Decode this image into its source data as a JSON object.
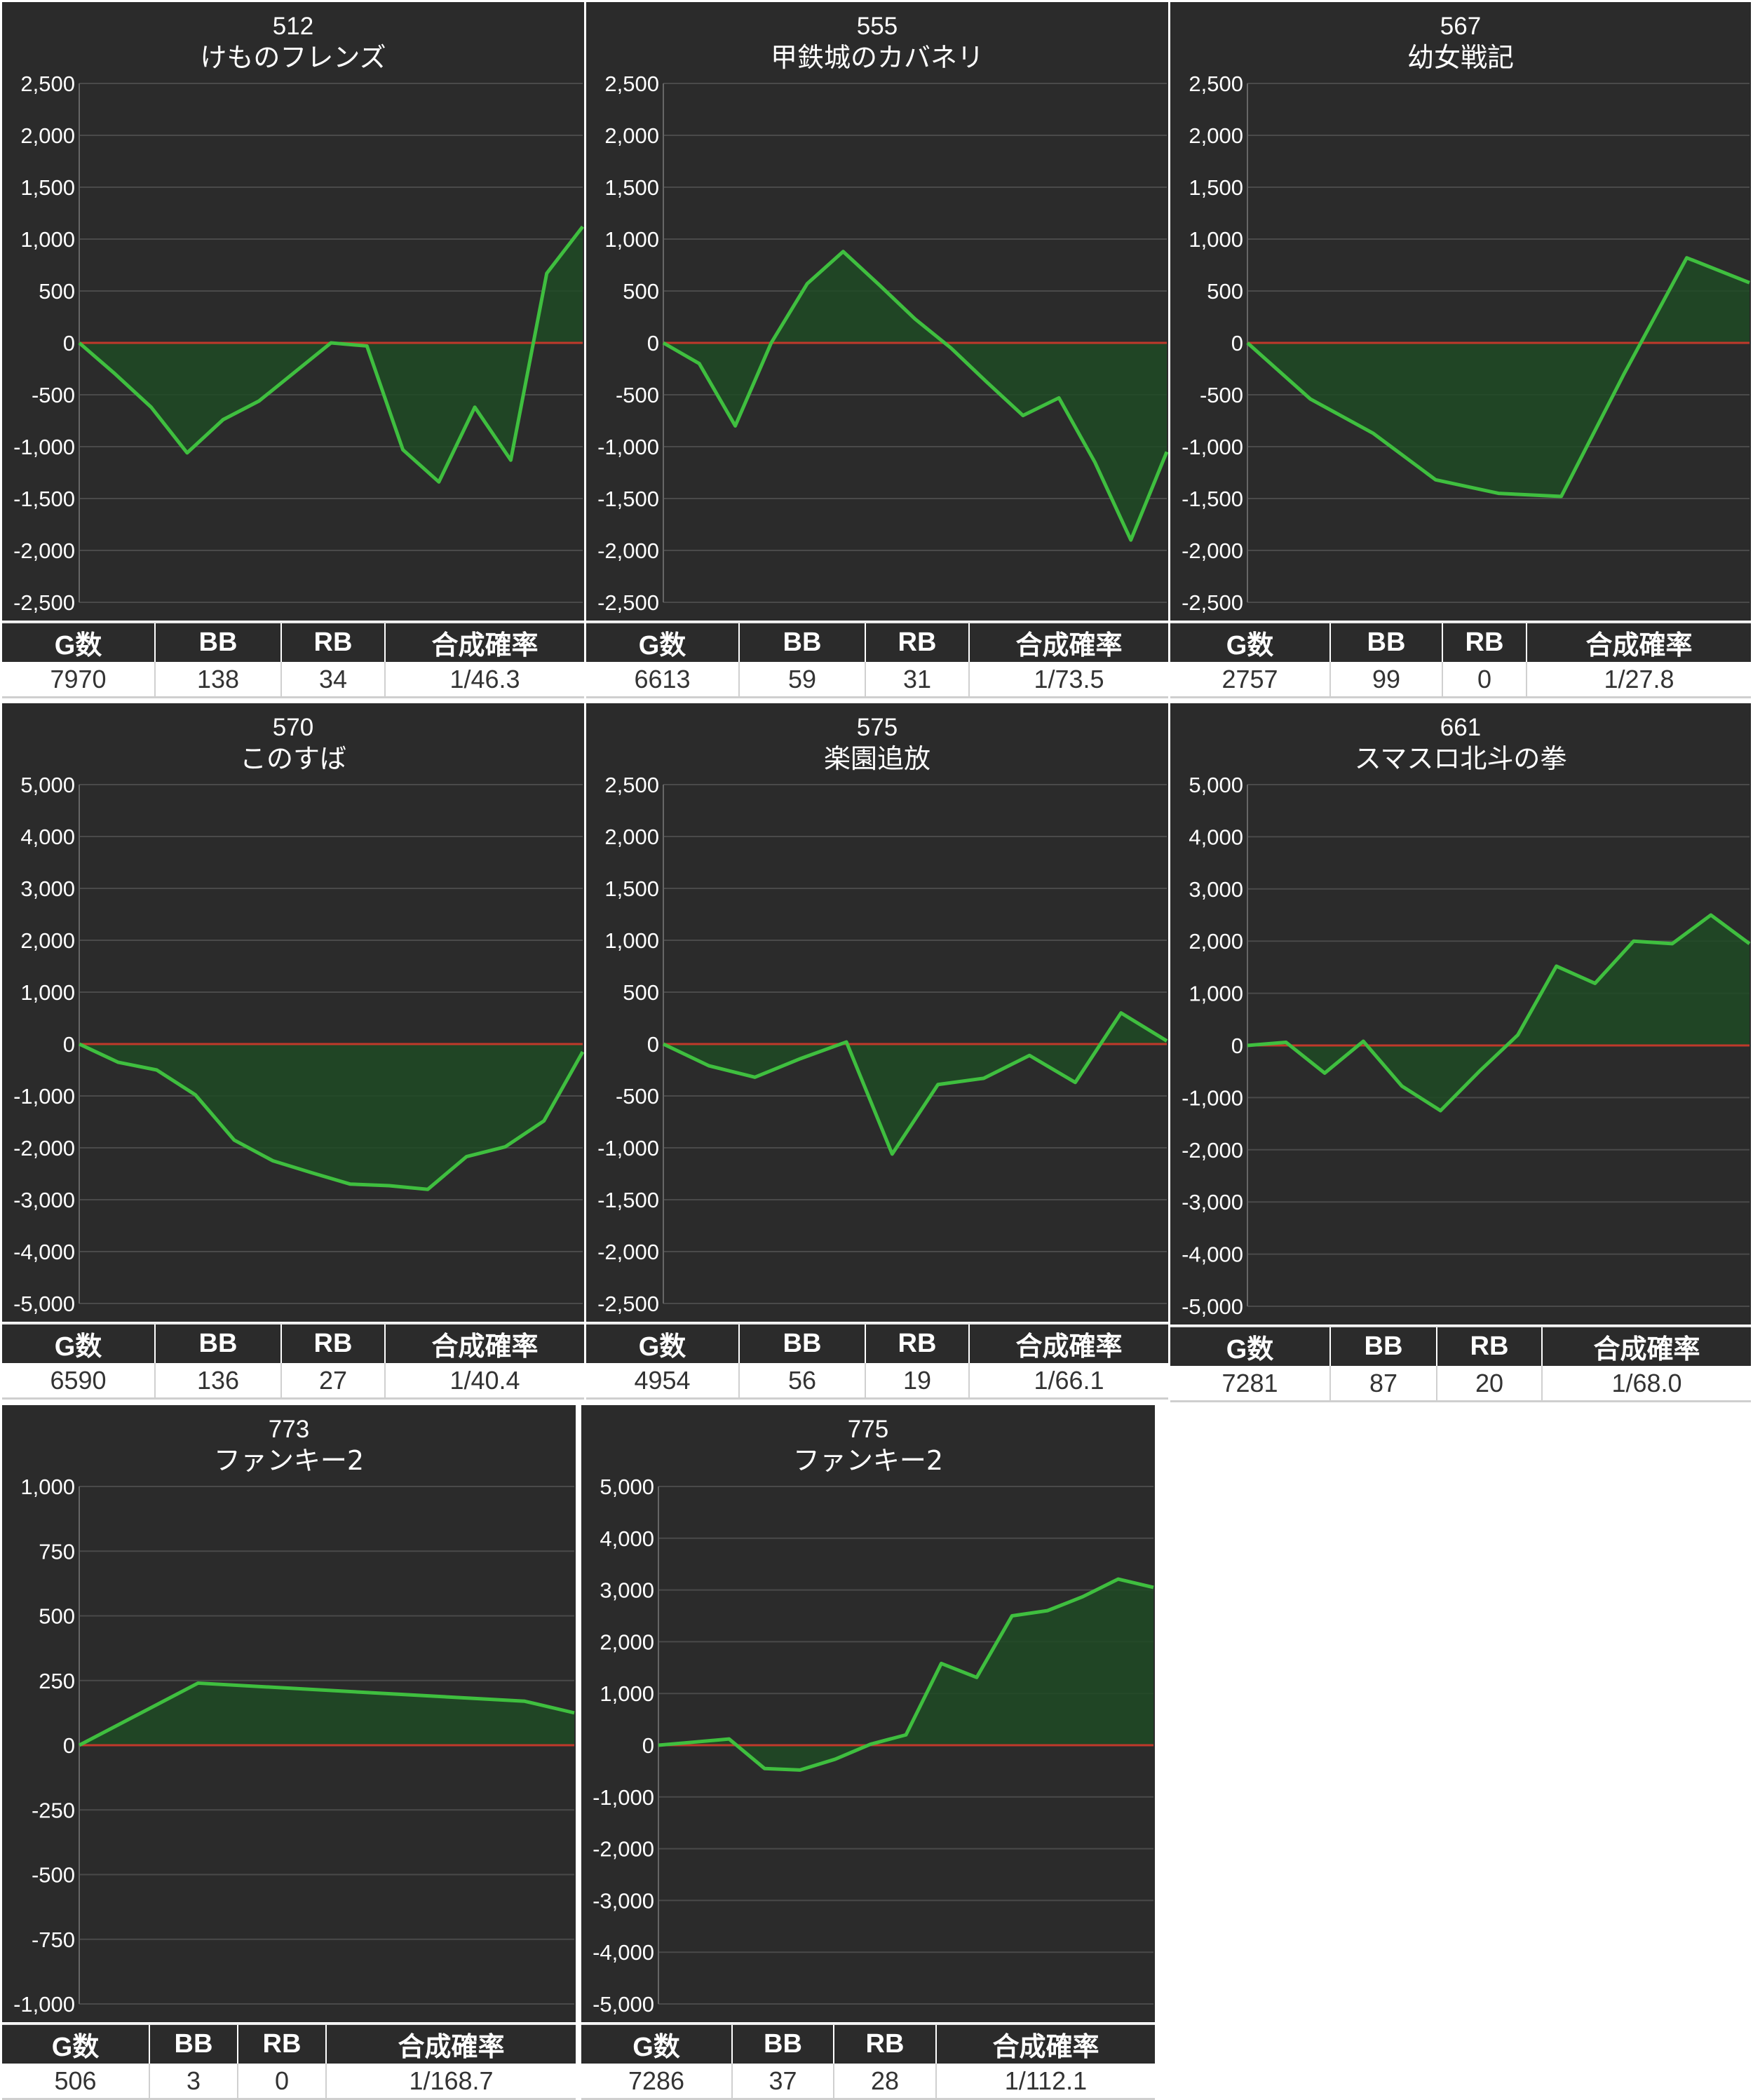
{
  "colors": {
    "panel_bg": "#2b2b2b",
    "grid": "#4a4a4a",
    "zero_line": "#c0392b",
    "series_line": "#3fbf3f",
    "series_fill": "#1f4a25",
    "text": "#ffffff",
    "table_header_bg": "#2b2b2b",
    "table_cell_bg": "#ffffff"
  },
  "headers": [
    "G数",
    "BB",
    "RB",
    "合成確率"
  ],
  "panels": [
    {
      "number": "512",
      "name": "けものフレンズ",
      "stats": [
        "7970",
        "138",
        "34",
        "1/46.3"
      ],
      "chart_data": {
        "type": "area",
        "ylim": [
          -2500,
          2500
        ],
        "yticks": [
          "2,500",
          "2,000",
          "1,500",
          "1,000",
          "500",
          "0",
          "-500",
          "-1,000",
          "-1,500",
          "-2,000",
          "-2,500"
        ],
        "values": [
          0,
          -300,
          -620,
          -1060,
          -740,
          -560,
          -280,
          0,
          -30,
          -1030,
          -1340,
          -620,
          -1130,
          670,
          1120
        ]
      }
    },
    {
      "number": "555",
      "name": "甲鉄城のカバネリ",
      "stats": [
        "6613",
        "59",
        "31",
        "1/73.5"
      ],
      "chart_data": {
        "type": "area",
        "ylim": [
          -2500,
          2500
        ],
        "yticks": [
          "2,500",
          "2,000",
          "1,500",
          "1,000",
          "500",
          "0",
          "-500",
          "-1,000",
          "-1,500",
          "-2,000",
          "-2,500"
        ],
        "values": [
          0,
          -200,
          -800,
          0,
          570,
          880,
          560,
          230,
          -50,
          -380,
          -700,
          -530,
          -1150,
          -1900,
          -1050
        ]
      }
    },
    {
      "number": "567",
      "name": "幼女戦記",
      "stats": [
        "2757",
        "99",
        "0",
        "1/27.8"
      ],
      "chart_data": {
        "type": "area",
        "ylim": [
          -2500,
          2500
        ],
        "yticks": [
          "2,500",
          "2,000",
          "1,500",
          "1,000",
          "500",
          "0",
          "-500",
          "-1,000",
          "-1,500",
          "-2,000",
          "-2,500"
        ],
        "values": [
          0,
          -540,
          -870,
          -1320,
          -1450,
          -1480,
          -300,
          820,
          580
        ]
      }
    },
    {
      "number": "570",
      "name": "このすば",
      "stats": [
        "6590",
        "136",
        "27",
        "1/40.4"
      ],
      "chart_data": {
        "type": "area",
        "ylim": [
          -5000,
          5000
        ],
        "yticks": [
          "5,000",
          "4,000",
          "3,000",
          "2,000",
          "1,000",
          "0",
          "-1,000",
          "-2,000",
          "-3,000",
          "-4,000",
          "-5,000"
        ],
        "values": [
          0,
          -350,
          -500,
          -980,
          -1850,
          -2250,
          -2480,
          -2700,
          -2730,
          -2800,
          -2170,
          -1980,
          -1480,
          -150
        ]
      }
    },
    {
      "number": "575",
      "name": "楽園追放",
      "stats": [
        "4954",
        "56",
        "19",
        "1/66.1"
      ],
      "chart_data": {
        "type": "area",
        "ylim": [
          -2500,
          2500
        ],
        "yticks": [
          "2,500",
          "2,000",
          "1,500",
          "1,000",
          "500",
          "0",
          "-500",
          "-1,000",
          "-1,500",
          "-2,000",
          "-2,500"
        ],
        "values": [
          0,
          -210,
          -320,
          -140,
          20,
          -1060,
          -390,
          -330,
          -110,
          -370,
          300,
          30
        ]
      }
    },
    {
      "number": "661",
      "name": "スマスロ北斗の拳",
      "stats": [
        "7281",
        "87",
        "20",
        "1/68.0"
      ],
      "chart_data": {
        "type": "area",
        "ylim": [
          -5000,
          5000
        ],
        "yticks": [
          "5,000",
          "4,000",
          "3,000",
          "2,000",
          "1,000",
          "0",
          "-1,000",
          "-2,000",
          "-3,000",
          "-4,000",
          "-5,000"
        ],
        "values": [
          0,
          60,
          -530,
          80,
          -780,
          -1250,
          -500,
          200,
          1520,
          1190,
          2000,
          1950,
          2500,
          1950
        ]
      }
    },
    {
      "number": "773",
      "name": "ファンキー2",
      "stats": [
        "506",
        "3",
        "0",
        "1/168.7"
      ],
      "chart_data": {
        "type": "area",
        "ylim": [
          -1000,
          1000
        ],
        "yticks": [
          "1,000",
          "750",
          "500",
          "250",
          "0",
          "-250",
          "-500",
          "-750",
          "-1,000"
        ],
        "values": [
          0,
          240,
          170,
          125
        ],
        "x": [
          0,
          0.24,
          0.9,
          1.0
        ]
      }
    },
    {
      "number": "775",
      "name": "ファンキー2",
      "stats": [
        "7286",
        "37",
        "28",
        "1/112.1"
      ],
      "chart_data": {
        "type": "area",
        "ylim": [
          -5000,
          5000
        ],
        "yticks": [
          "5,000",
          "4,000",
          "3,000",
          "2,000",
          "1,000",
          "0",
          "-1,000",
          "-2,000",
          "-3,000",
          "-4,000",
          "-5,000"
        ],
        "values": [
          0,
          60,
          120,
          -450,
          -480,
          -270,
          20,
          200,
          1580,
          1310,
          2500,
          2600,
          2870,
          3210,
          3050
        ]
      }
    }
  ]
}
